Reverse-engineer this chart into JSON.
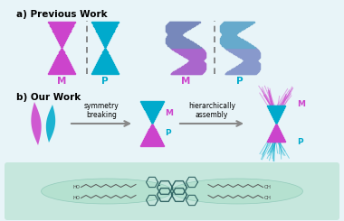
{
  "bg_color": "#e8f4f8",
  "title_a": "a) Previous Work",
  "title_b": "b) Our Work",
  "M_color": "#cc44cc",
  "P_color": "#00aacc",
  "arrow_color": "#888888",
  "text_symmetry": "symmetry\nbreaking",
  "text_hierarchically": "hierarchically\nassembly",
  "mint_color": "#aaddc8",
  "mint_alpha": 0.55,
  "dark_gray": "#555555",
  "ribbon_purple": "#9966cc",
  "ribbon_teal": "#44aaaa"
}
